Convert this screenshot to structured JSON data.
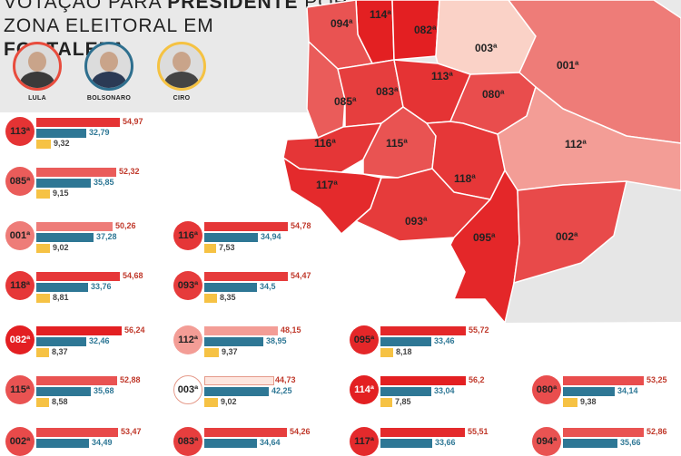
{
  "header": {
    "line1_text": "VOTAÇÃO PARA ",
    "line1_bold": "PRESIDENTE",
    "line1_end": " POR",
    "line2_text": "ZONA ELEITORAL EM ",
    "line2_bold": "FORTALEZA"
  },
  "candidates": [
    {
      "name": "LULA",
      "color": "#e84c3d"
    },
    {
      "name": "BOLSONARO",
      "color": "#2e6f8e"
    },
    {
      "name": "CIRO",
      "color": "#f5c242"
    }
  ],
  "colors": {
    "lula": "#e9735e",
    "bolsonaro": "#2e7795",
    "ciro": "#f6c244"
  },
  "map": {
    "zones": [
      {
        "label": "114ª",
        "lula": 56.2
      },
      {
        "label": "082ª",
        "lula": 56.24
      },
      {
        "label": "094ª",
        "lula": 52.86
      },
      {
        "label": "003ª",
        "lula": 44.73
      },
      {
        "label": "001ª",
        "lula": 50.26
      },
      {
        "label": "085ª",
        "lula": 52.32
      },
      {
        "label": "083ª",
        "lula": 54.26
      },
      {
        "label": "113ª",
        "lula": 54.97
      },
      {
        "label": "080ª",
        "lula": 53.25
      },
      {
        "label": "116ª",
        "lula": 54.78
      },
      {
        "label": "115ª",
        "lula": 52.88
      },
      {
        "label": "112ª",
        "lula": 48.15
      },
      {
        "label": "118ª",
        "lula": 54.68
      },
      {
        "label": "117ª",
        "lula": 55.51
      },
      {
        "label": "093ª",
        "lula": 54.47
      },
      {
        "label": "095ª",
        "lula": 55.72
      },
      {
        "label": "002ª",
        "lula": 53.47
      }
    ]
  },
  "chart_data": {
    "type": "bar",
    "title": "VOTAÇÃO PARA PRESIDENTE POR ZONA ELEITORAL EM FORTALEZA",
    "series_names": [
      "LULA",
      "BOLSONARO",
      "CIRO"
    ],
    "zones": [
      {
        "zone": "113ª",
        "lula": "54,97",
        "bolsonaro": "32,79",
        "ciro": "9,32"
      },
      {
        "zone": "085ª",
        "lula": "52,32",
        "bolsonaro": "35,85",
        "ciro": "9,15"
      },
      {
        "zone": "001ª",
        "lula": "50,26",
        "bolsonaro": "37,28",
        "ciro": "9,02"
      },
      {
        "zone": "118ª",
        "lula": "54,68",
        "bolsonaro": "33,76",
        "ciro": "8,81"
      },
      {
        "zone": "082ª",
        "lula": "56,24",
        "bolsonaro": "32,46",
        "ciro": "8,37"
      },
      {
        "zone": "115ª",
        "lula": "52,88",
        "bolsonaro": "35,68",
        "ciro": "8,58"
      },
      {
        "zone": "002ª",
        "lula": "53,47",
        "bolsonaro": "34,49",
        "ciro": ""
      },
      {
        "zone": "116ª",
        "lula": "54,78",
        "bolsonaro": "34,94",
        "ciro": "7,53"
      },
      {
        "zone": "093ª",
        "lula": "54,47",
        "bolsonaro": "34,5",
        "ciro": "8,35"
      },
      {
        "zone": "112ª",
        "lula": "48,15",
        "bolsonaro": "38,95",
        "ciro": "9,37"
      },
      {
        "zone": "003ª",
        "lula": "44,73",
        "bolsonaro": "42,25",
        "ciro": "9,02"
      },
      {
        "zone": "083ª",
        "lula": "54,26",
        "bolsonaro": "34,64",
        "ciro": ""
      },
      {
        "zone": "095ª",
        "lula": "55,72",
        "bolsonaro": "33,46",
        "ciro": "8,18"
      },
      {
        "zone": "114ª",
        "lula": "56,2",
        "bolsonaro": "33,04",
        "ciro": "7,85"
      },
      {
        "zone": "117ª",
        "lula": "55,51",
        "bolsonaro": "33,66",
        "ciro": ""
      },
      {
        "zone": "080ª",
        "lula": "53,25",
        "bolsonaro": "34,14",
        "ciro": "9,38"
      },
      {
        "zone": "094ª",
        "lula": "52,86",
        "bolsonaro": "35,66",
        "ciro": ""
      }
    ]
  }
}
